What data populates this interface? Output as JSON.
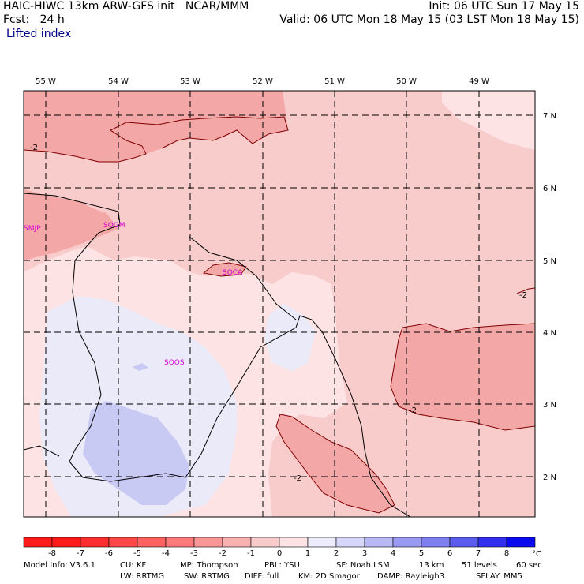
{
  "header": {
    "line1_left": "HAIC-HIWC 13km ARW-GFS init   NCAR/MMM",
    "line2_left": "Fcst:   24 h",
    "line3_left": "Lifted index",
    "line1_right": "Init: 06 UTC Sun 17 May 15",
    "line2_right": "Valid: 06 UTC Mon 18 May 15 (03 LST Mon 18 May 15)"
  },
  "map": {
    "lon_labels": [
      "55 W",
      "54 W",
      "53 W",
      "52 W",
      "51 W",
      "50 W",
      "49 W"
    ],
    "lat_labels": [
      "7 N",
      "6 N",
      "5 N",
      "4 N",
      "3 N",
      "2 N"
    ],
    "stations": [
      "SMJP",
      "SOGM",
      "SOCA",
      "SOOS"
    ],
    "contour_labels": [
      "-2",
      "-2",
      "-2",
      "-2"
    ],
    "colors": {
      "fill_minus2": "#f4a7a7",
      "fill_minus1": "#f9cccc",
      "fill_0": "#fde3e3",
      "fill_plus1": "#eaeaf9",
      "fill_plus2": "#c9caf4",
      "station": "#d400d4"
    }
  },
  "colorbar": {
    "ticks": [
      "-8",
      "-7",
      "-6",
      "-5",
      "-4",
      "-3",
      "-2",
      "-1",
      "0",
      "1",
      "2",
      "3",
      "4",
      "5",
      "6",
      "7",
      "8"
    ],
    "unit": "°C",
    "colors": [
      "#ff1a1a",
      "#ff2e2e",
      "#ff4747",
      "#ff6161",
      "#ff7b7b",
      "#f99797",
      "#f9b0b0",
      "#f9cccc",
      "#fde3e3",
      "#ececfb",
      "#d6d6fa",
      "#b8b8f5",
      "#9a9af2",
      "#7f7ff0",
      "#5c5cee",
      "#3030ee",
      "#0a0af0"
    ]
  },
  "footer": {
    "model_info": "Model Info: V3.6.1",
    "cu": "CU: KF",
    "mp": "MP: Thompson",
    "pbl": "PBL: YSU",
    "sf": "SF: Noah LSM",
    "res": "13 km",
    "levels": "51 levels",
    "dt": "60 sec",
    "lw": "LW: RRTMG",
    "sw": "SW: RRTMG",
    "diff": "DIFF: full",
    "km": "KM: 2D Smagor",
    "damp": "DAMP: Rayleigh3",
    "sflay": "SFLAY: MM5"
  }
}
